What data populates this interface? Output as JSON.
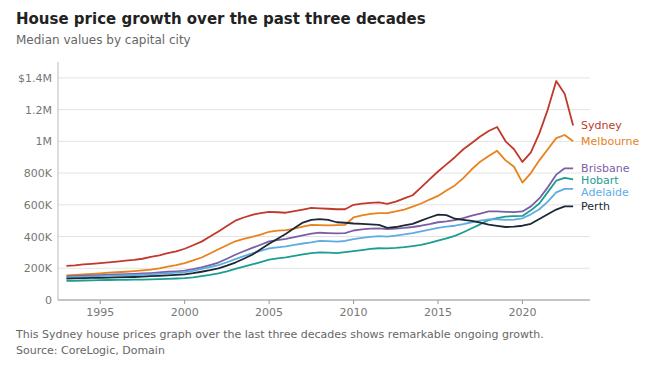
{
  "chart_data": {
    "type": "line",
    "title": "House price growth over the past three decades",
    "subtitle": "Median values by capital city",
    "caption": "This Sydney house prices graph over the last three decades shows remarkable ongoing growth.\nSource: CoreLogic, Domain",
    "x": [
      1993,
      1993.5,
      1994,
      1994.5,
      1995,
      1995.5,
      1996,
      1996.5,
      1997,
      1997.5,
      1998,
      1998.5,
      1999,
      1999.5,
      2000,
      2000.5,
      2001,
      2001.5,
      2002,
      2002.5,
      2003,
      2003.5,
      2004,
      2004.5,
      2005,
      2005.5,
      2006,
      2006.5,
      2007,
      2007.5,
      2008,
      2008.5,
      2009,
      2009.5,
      2010,
      2010.5,
      2011,
      2011.5,
      2012,
      2012.5,
      2013,
      2013.5,
      2014,
      2014.5,
      2015,
      2015.5,
      2016,
      2016.5,
      2017,
      2017.5,
      2018,
      2018.5,
      2019,
      2019.5,
      2020,
      2020.5,
      2021,
      2021.5,
      2022,
      2022.5,
      2023
    ],
    "series": [
      {
        "name": "Sydney",
        "color": "#C0392B",
        "values": [
          215000,
          218000,
          225000,
          228000,
          232000,
          237000,
          242000,
          248000,
          253000,
          260000,
          272000,
          282000,
          296000,
          307000,
          323000,
          345000,
          368000,
          400000,
          432000,
          466000,
          500000,
          520000,
          537000,
          548000,
          556000,
          553000,
          550000,
          560000,
          570000,
          580000,
          577000,
          575000,
          572000,
          572000,
          600000,
          608000,
          612000,
          615000,
          606000,
          620000,
          640000,
          660000,
          710000,
          760000,
          810000,
          855000,
          900000,
          950000,
          990000,
          1030000,
          1065000,
          1090000,
          1000000,
          950000,
          870000,
          930000,
          1050000,
          1200000,
          1380000,
          1300000,
          1100000
        ]
      },
      {
        "name": "Melbourne",
        "color": "#E8821A",
        "values": [
          155000,
          158000,
          162000,
          165000,
          168000,
          172000,
          175000,
          178000,
          182000,
          187000,
          192000,
          200000,
          210000,
          220000,
          232000,
          250000,
          268000,
          293000,
          320000,
          345000,
          370000,
          385000,
          398000,
          412000,
          430000,
          437000,
          440000,
          450000,
          462000,
          474000,
          472000,
          470000,
          472000,
          474000,
          520000,
          533000,
          543000,
          548000,
          548000,
          558000,
          570000,
          588000,
          608000,
          633000,
          656000,
          690000,
          722000,
          768000,
          824000,
          872000,
          908000,
          940000,
          880000,
          840000,
          740000,
          800000,
          880000,
          950000,
          1020000,
          1040000,
          1000000
        ]
      },
      {
        "name": "Brisbane",
        "color": "#7B5EA7",
        "values": [
          148000,
          150000,
          153000,
          155000,
          157000,
          159000,
          162000,
          163000,
          165000,
          167000,
          170000,
          174000,
          178000,
          181000,
          185000,
          194000,
          205000,
          220000,
          236000,
          260000,
          285000,
          307000,
          328000,
          348000,
          369000,
          378000,
          385000,
          396000,
          408000,
          418000,
          424000,
          422000,
          420000,
          422000,
          438000,
          445000,
          450000,
          452000,
          447000,
          450000,
          454000,
          460000,
          468000,
          478000,
          490000,
          496000,
          504000,
          516000,
          532000,
          545000,
          558000,
          558000,
          556000,
          554000,
          558000,
          590000,
          640000,
          710000,
          790000,
          830000,
          830000
        ]
      },
      {
        "name": "Hobart",
        "color": "#1A9E8F",
        "values": [
          120000,
          121000,
          123000,
          124000,
          125000,
          126000,
          127000,
          127500,
          128000,
          129000,
          130000,
          131500,
          133000,
          135500,
          138000,
          143000,
          150000,
          158000,
          168000,
          180000,
          196000,
          210000,
          224000,
          239000,
          255000,
          262000,
          268000,
          278000,
          288000,
          296000,
          300000,
          298000,
          296000,
          302000,
          308000,
          315000,
          322000,
          326000,
          325000,
          328000,
          333000,
          340000,
          348000,
          360000,
          374000,
          388000,
          404000,
          427000,
          452000,
          477000,
          504000,
          516000,
          526000,
          528000,
          530000,
          565000,
          608000,
          680000,
          752000,
          770000,
          760000
        ]
      },
      {
        "name": "Adelaide",
        "color": "#5DADE2",
        "values": [
          143000,
          145000,
          147000,
          149000,
          150000,
          153000,
          154000,
          156000,
          157000,
          160000,
          162000,
          165000,
          168000,
          172000,
          175000,
          184000,
          196000,
          208000,
          220000,
          238000,
          258000,
          276000,
          294000,
          310000,
          325000,
          332000,
          338000,
          347000,
          356000,
          363000,
          372000,
          371000,
          368000,
          372000,
          383000,
          392000,
          398000,
          402000,
          400000,
          406000,
          413000,
          422000,
          433000,
          443000,
          455000,
          462000,
          468000,
          478000,
          490000,
          500000,
          508000,
          508000,
          505000,
          507000,
          515000,
          540000,
          572000,
          620000,
          678000,
          700000,
          700000
        ]
      },
      {
        "name": "Perth",
        "color": "#1C2833",
        "values": [
          135000,
          136000,
          138000,
          139000,
          140000,
          141000,
          143000,
          144000,
          145000,
          147000,
          150000,
          152000,
          155000,
          158000,
          162000,
          169000,
          178000,
          188000,
          200000,
          217000,
          236000,
          260000,
          285000,
          320000,
          355000,
          386000,
          418000,
          453000,
          488000,
          505000,
          510000,
          505000,
          490000,
          487000,
          482000,
          480000,
          477000,
          474000,
          455000,
          460000,
          470000,
          480000,
          500000,
          520000,
          538000,
          535000,
          512000,
          505000,
          498000,
          487000,
          475000,
          467000,
          460000,
          462000,
          468000,
          480000,
          510000,
          540000,
          570000,
          590000,
          590000
        ]
      }
    ],
    "xlim": [
      1992.5,
      2024
    ],
    "xticks": [
      1995,
      2000,
      2005,
      2010,
      2015,
      2020
    ],
    "ylim": [
      0,
      1500000
    ],
    "yticks": [
      0,
      {
        "value": 200000,
        "label": "200K"
      },
      {
        "value": 400000,
        "label": "400K"
      },
      {
        "value": 600000,
        "label": "600K"
      },
      {
        "value": 800000,
        "label": "800K"
      },
      {
        "value": 1000000,
        "label": "1M"
      },
      {
        "value": 1200000,
        "label": "1.2M"
      },
      {
        "value": 1400000,
        "label": "$1.4M"
      }
    ],
    "grid": true
  }
}
